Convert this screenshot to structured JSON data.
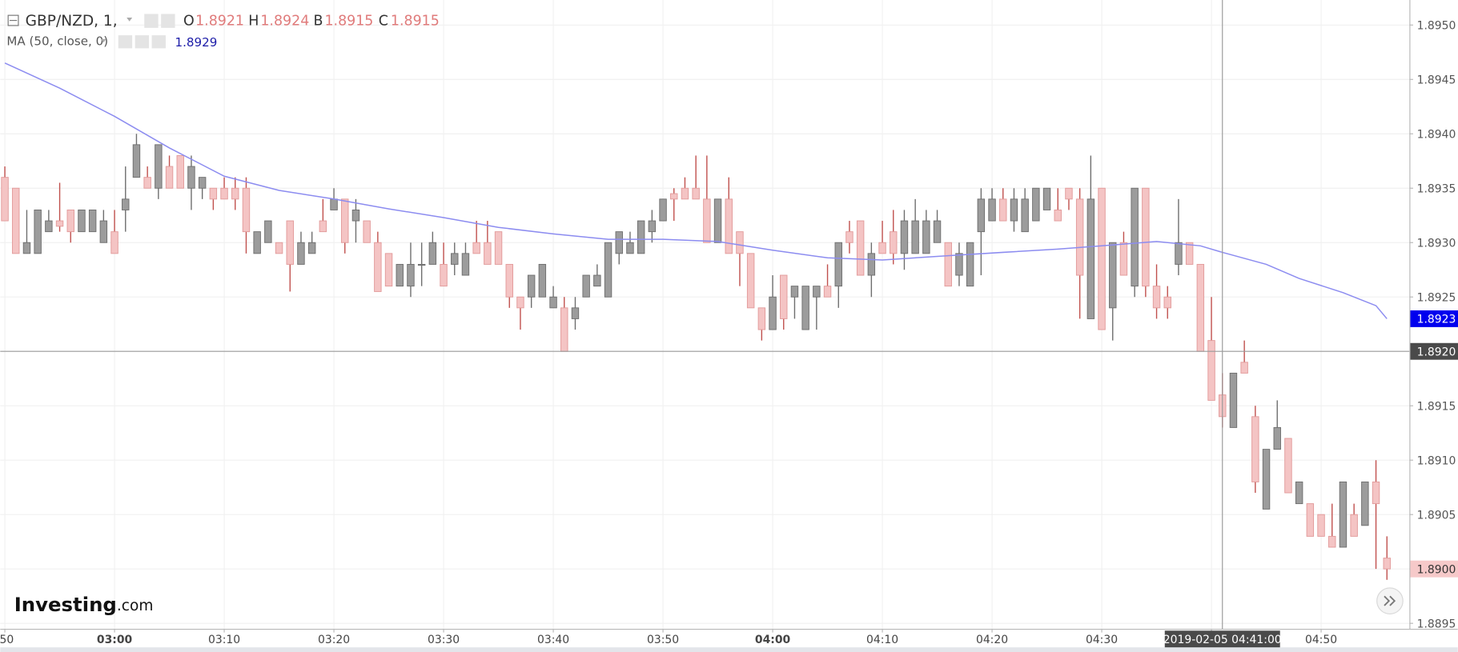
{
  "chart_data": {
    "type": "candlestick",
    "symbol": "GBP/NZD, 1,",
    "header": {
      "o_label": "O",
      "o": 1.8921,
      "h_label": "H",
      "h": 1.8924,
      "b_label": "B",
      "b": 1.8915,
      "c_label": "C",
      "c": 1.8915
    },
    "up_color": "#9c9c9c",
    "down_color": "#f4c4c4",
    "up_wick": "#6e6e6e",
    "down_wick": "#c0504d",
    "ohlc": [
      [
        1.8936,
        1.8937,
        1.8932,
        1.8932
      ],
      [
        1.8935,
        1.8935,
        1.8929,
        1.8929
      ],
      [
        1.8929,
        1.8933,
        1.8929,
        1.893
      ],
      [
        1.8929,
        1.8933,
        1.8929,
        1.8933
      ],
      [
        1.8931,
        1.8933,
        1.8931,
        1.8932
      ],
      [
        1.8932,
        1.89355,
        1.8931,
        1.89315
      ],
      [
        1.8933,
        1.8933,
        1.893,
        1.8931
      ],
      [
        1.8931,
        1.8933,
        1.8931,
        1.8933
      ],
      [
        1.8931,
        1.8933,
        1.8931,
        1.8933
      ],
      [
        1.893,
        1.8933,
        1.893,
        1.8932
      ],
      [
        1.8931,
        1.8933,
        1.8929,
        1.8929
      ],
      [
        1.8933,
        1.8937,
        1.8931,
        1.8934
      ],
      [
        1.8936,
        1.894,
        1.8936,
        1.8939
      ],
      [
        1.8936,
        1.8937,
        1.8935,
        1.8935
      ],
      [
        1.8935,
        1.8939,
        1.8934,
        1.8939
      ],
      [
        1.8937,
        1.8938,
        1.8935,
        1.8935
      ],
      [
        1.8938,
        1.8938,
        1.8935,
        1.8935
      ],
      [
        1.8935,
        1.8938,
        1.8933,
        1.8937
      ],
      [
        1.8935,
        1.8936,
        1.8934,
        1.8936
      ],
      [
        1.8935,
        1.8935,
        1.8933,
        1.8934
      ],
      [
        1.8935,
        1.8936,
        1.8934,
        1.8934
      ],
      [
        1.8935,
        1.8936,
        1.8933,
        1.8934
      ],
      [
        1.8935,
        1.8936,
        1.8929,
        1.8931
      ],
      [
        1.8929,
        1.8931,
        1.8929,
        1.8931
      ],
      [
        1.893,
        1.8932,
        1.893,
        1.8932
      ],
      [
        1.893,
        1.893,
        1.8929,
        1.8929
      ],
      [
        1.8932,
        1.8932,
        1.89255,
        1.8928
      ],
      [
        1.8928,
        1.8931,
        1.8928,
        1.893
      ],
      [
        1.8929,
        1.8931,
        1.8929,
        1.893
      ],
      [
        1.8932,
        1.8934,
        1.8931,
        1.8931
      ],
      [
        1.8933,
        1.8935,
        1.8933,
        1.8934
      ],
      [
        1.8934,
        1.8934,
        1.8929,
        1.893
      ],
      [
        1.8932,
        1.8934,
        1.893,
        1.8933
      ],
      [
        1.8932,
        1.8932,
        1.893,
        1.893
      ],
      [
        1.893,
        1.8931,
        1.89255,
        1.89255
      ],
      [
        1.8929,
        1.8929,
        1.8926,
        1.8926
      ],
      [
        1.8926,
        1.8928,
        1.8926,
        1.8928
      ],
      [
        1.8926,
        1.893,
        1.8925,
        1.8928
      ],
      [
        1.8928,
        1.893,
        1.8926,
        1.8928
      ],
      [
        1.8928,
        1.8931,
        1.8928,
        1.893
      ],
      [
        1.8928,
        1.893,
        1.8926,
        1.8926
      ],
      [
        1.8928,
        1.893,
        1.8927,
        1.8929
      ],
      [
        1.8927,
        1.893,
        1.8927,
        1.8929
      ],
      [
        1.893,
        1.8932,
        1.8929,
        1.8929
      ],
      [
        1.893,
        1.8932,
        1.8928,
        1.8928
      ],
      [
        1.8931,
        1.8931,
        1.8928,
        1.8928
      ],
      [
        1.8928,
        1.8928,
        1.8924,
        1.8925
      ],
      [
        1.8925,
        1.8925,
        1.8922,
        1.8924
      ],
      [
        1.8925,
        1.8927,
        1.8924,
        1.8927
      ],
      [
        1.8925,
        1.8928,
        1.8925,
        1.8928
      ],
      [
        1.8924,
        1.8926,
        1.8924,
        1.8925
      ],
      [
        1.8924,
        1.8925,
        1.892,
        1.892
      ],
      [
        1.8923,
        1.8925,
        1.8922,
        1.8924
      ],
      [
        1.8925,
        1.8927,
        1.8925,
        1.8927
      ],
      [
        1.8926,
        1.8928,
        1.8926,
        1.8927
      ],
      [
        1.8925,
        1.893,
        1.8925,
        1.893
      ],
      [
        1.8929,
        1.8931,
        1.8928,
        1.8931
      ],
      [
        1.8929,
        1.8931,
        1.8929,
        1.893
      ],
      [
        1.8929,
        1.8932,
        1.8929,
        1.8932
      ],
      [
        1.8931,
        1.8933,
        1.893,
        1.8932
      ],
      [
        1.8932,
        1.8934,
        1.8932,
        1.8934
      ],
      [
        1.89345,
        1.8935,
        1.8932,
        1.8934
      ],
      [
        1.8935,
        1.8936,
        1.8934,
        1.8934
      ],
      [
        1.8935,
        1.8938,
        1.8934,
        1.8934
      ],
      [
        1.8934,
        1.8938,
        1.893,
        1.893
      ],
      [
        1.893,
        1.8934,
        1.893,
        1.8934
      ],
      [
        1.8934,
        1.8936,
        1.8929,
        1.8929
      ],
      [
        1.8931,
        1.8931,
        1.8926,
        1.8929
      ],
      [
        1.8929,
        1.8929,
        1.8924,
        1.8924
      ],
      [
        1.8924,
        1.8924,
        1.8921,
        1.8922
      ],
      [
        1.8922,
        1.8927,
        1.8922,
        1.8925
      ],
      [
        1.8927,
        1.8927,
        1.8922,
        1.8923
      ],
      [
        1.8925,
        1.8926,
        1.8923,
        1.8926
      ],
      [
        1.8922,
        1.8926,
        1.8922,
        1.8926
      ],
      [
        1.8925,
        1.8926,
        1.8922,
        1.8926
      ],
      [
        1.8926,
        1.8928,
        1.8925,
        1.8925
      ],
      [
        1.8926,
        1.893,
        1.8924,
        1.893
      ],
      [
        1.8931,
        1.8932,
        1.8929,
        1.893
      ],
      [
        1.8932,
        1.8932,
        1.8927,
        1.8927
      ],
      [
        1.8927,
        1.893,
        1.8925,
        1.8929
      ],
      [
        1.893,
        1.8932,
        1.8929,
        1.8929
      ],
      [
        1.8931,
        1.8933,
        1.8928,
        1.8929
      ],
      [
        1.8929,
        1.8933,
        1.89275,
        1.8932
      ],
      [
        1.8929,
        1.8934,
        1.8929,
        1.8932
      ],
      [
        1.8929,
        1.8933,
        1.8929,
        1.8932
      ],
      [
        1.893,
        1.8933,
        1.893,
        1.8932
      ],
      [
        1.893,
        1.893,
        1.8926,
        1.8926
      ],
      [
        1.8927,
        1.893,
        1.8926,
        1.8929
      ],
      [
        1.8926,
        1.893,
        1.8926,
        1.893
      ],
      [
        1.8931,
        1.8935,
        1.8927,
        1.8934
      ],
      [
        1.8932,
        1.8935,
        1.8932,
        1.8934
      ],
      [
        1.8934,
        1.8935,
        1.8932,
        1.8932
      ],
      [
        1.8932,
        1.8935,
        1.8931,
        1.8934
      ],
      [
        1.8931,
        1.8935,
        1.8931,
        1.8934
      ],
      [
        1.8932,
        1.8935,
        1.8932,
        1.8935
      ],
      [
        1.8933,
        1.8935,
        1.8933,
        1.8935
      ],
      [
        1.8933,
        1.8935,
        1.8932,
        1.8932
      ],
      [
        1.8935,
        1.8935,
        1.8933,
        1.8934
      ],
      [
        1.8934,
        1.8935,
        1.8923,
        1.8927
      ],
      [
        1.8923,
        1.8938,
        1.8923,
        1.8934
      ],
      [
        1.8935,
        1.8935,
        1.8922,
        1.8922
      ],
      [
        1.8924,
        1.893,
        1.8921,
        1.893
      ],
      [
        1.893,
        1.8931,
        1.8927,
        1.8927
      ],
      [
        1.8926,
        1.8935,
        1.8925,
        1.8935
      ],
      [
        1.8935,
        1.8935,
        1.8925,
        1.8926
      ],
      [
        1.8926,
        1.8928,
        1.8923,
        1.8924
      ],
      [
        1.8925,
        1.8926,
        1.8923,
        1.8924
      ],
      [
        1.8928,
        1.8934,
        1.8927,
        1.893
      ],
      [
        1.893,
        1.893,
        1.8928,
        1.8928
      ],
      [
        1.8928,
        1.8928,
        1.892,
        1.892
      ],
      [
        1.8921,
        1.8925,
        1.89155,
        1.89155
      ],
      [
        1.8916,
        1.8918,
        1.8913,
        1.8914
      ],
      [
        1.8913,
        1.8918,
        1.8913,
        1.8918
      ],
      [
        1.8919,
        1.8921,
        1.8918,
        1.8918
      ],
      [
        1.8914,
        1.8915,
        1.8907,
        1.8908
      ],
      [
        1.89055,
        1.8911,
        1.89055,
        1.8911
      ],
      [
        1.8911,
        1.89155,
        1.8911,
        1.8913
      ],
      [
        1.8912,
        1.8912,
        1.8907,
        1.8907
      ],
      [
        1.8906,
        1.8908,
        1.8906,
        1.8908
      ],
      [
        1.8906,
        1.8906,
        1.8903,
        1.8903
      ],
      [
        1.8905,
        1.8905,
        1.8903,
        1.8903
      ],
      [
        1.8903,
        1.8906,
        1.8902,
        1.8902
      ],
      [
        1.8902,
        1.8908,
        1.8902,
        1.8908
      ],
      [
        1.8905,
        1.8906,
        1.8903,
        1.8903
      ],
      [
        1.8904,
        1.8908,
        1.8904,
        1.8908
      ],
      [
        1.8908,
        1.891,
        1.89,
        1.8906
      ],
      [
        1.8901,
        1.8903,
        1.8899,
        1.89
      ]
    ],
    "ma": {
      "name": "MA (50, close, 0)",
      "last_label": 1.8929,
      "color": "#8c8cf0",
      "x": [
        0,
        5,
        10,
        15,
        20,
        25,
        30,
        35,
        40,
        45,
        50,
        55,
        60,
        65,
        70,
        75,
        80,
        86,
        91,
        96,
        100,
        105,
        109,
        111,
        115,
        118,
        122,
        125,
        126
      ],
      "values": [
        1.89465,
        1.89442,
        1.89416,
        1.89387,
        1.89361,
        1.89348,
        1.8934,
        1.89331,
        1.89323,
        1.89314,
        1.89308,
        1.89303,
        1.89303,
        1.89301,
        1.89293,
        1.89286,
        1.89284,
        1.89288,
        1.89291,
        1.89294,
        1.89297,
        1.89301,
        1.89297,
        1.89291,
        1.8928,
        1.89267,
        1.89254,
        1.89242,
        1.8923
      ]
    },
    "ma_price": 1.8923,
    "last_price": {
      "value": 1.89,
      "label": "1.8900"
    },
    "crosshair": {
      "x": 111,
      "x_label": "2019-02-05 04:41:00",
      "y": {
        "value": 1.892,
        "label": "1.8920"
      }
    },
    "xlim": [
      -0.42,
      128.05
    ],
    "ylim": [
      1.88945,
      1.89523
    ],
    "xticks": [
      {
        "value": 0,
        "label": ":50"
      },
      {
        "value": 10,
        "label": "03:00",
        "bold": true
      },
      {
        "value": 20,
        "label": "03:10"
      },
      {
        "value": 30,
        "label": "03:20"
      },
      {
        "value": 40,
        "label": "03:30"
      },
      {
        "value": 50,
        "label": "03:40"
      },
      {
        "value": 60,
        "label": "03:50"
      },
      {
        "value": 70,
        "label": "04:00",
        "bold": true
      },
      {
        "value": 80,
        "label": "04:10"
      },
      {
        "value": 90,
        "label": "04:20"
      },
      {
        "value": 100,
        "label": "04:30"
      },
      {
        "value": 110,
        "label": "04:40"
      },
      {
        "value": 120,
        "label": "04:50"
      }
    ],
    "yticks": [
      1.8895,
      {
        "value": 1.89,
        "label": "1.8900"
      },
      1.8905,
      {
        "value": 1.891,
        "label": "1.8910"
      },
      1.8915,
      {
        "value": 1.892,
        "label": "1.8920"
      },
      1.8925,
      {
        "value": 1.893,
        "label": "1.8930"
      },
      1.8935,
      {
        "value": 1.894,
        "label": "1.8940"
      },
      1.8945,
      {
        "value": 1.895,
        "label": "1.8950"
      }
    ],
    "grid": true,
    "logo": {
      "brand": "Investing",
      "suffix": ".com"
    }
  }
}
